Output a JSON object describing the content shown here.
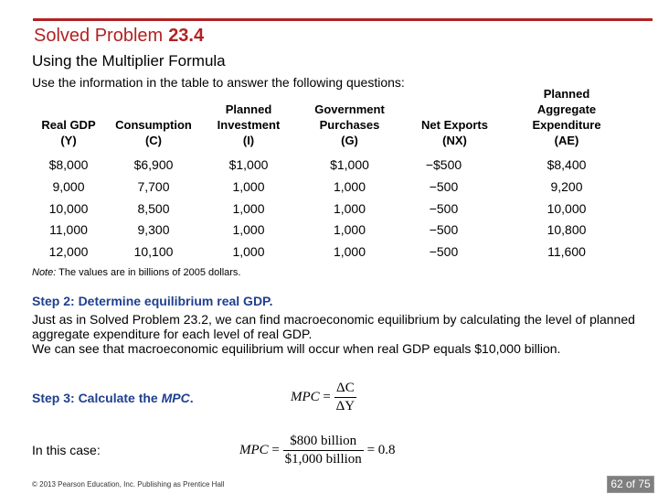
{
  "header": {
    "title": "Solved Problem",
    "title_number": "23.4",
    "subtitle": "Using the Multiplier Formula",
    "intro": "Use the information in the table to answer the following questions:"
  },
  "table": {
    "headers": [
      {
        "line1": "Real GDP",
        "line2": "",
        "line3": "",
        "var": "(Y)"
      },
      {
        "line1": "Consumption",
        "line2": "",
        "line3": "",
        "var": "(C)"
      },
      {
        "line1": "Planned",
        "line2": "Investment",
        "line3": "",
        "var": "(I)"
      },
      {
        "line1": "Government",
        "line2": "Purchases",
        "line3": "",
        "var": "(G)"
      },
      {
        "line1": "Net Exports",
        "line2": "",
        "line3": "",
        "var": "(NX)"
      },
      {
        "line1": "Planned",
        "line2": "Aggregate",
        "line3": "Expenditure",
        "var": "(AE)"
      }
    ],
    "rows": [
      [
        "$8,000",
        "$6,900",
        "$1,000",
        "$1,000",
        "−$500",
        "$8,400"
      ],
      [
        "9,000",
        "7,700",
        "1,000",
        "1,000",
        "−500",
        "9,200"
      ],
      [
        "10,000",
        "8,500",
        "1,000",
        "1,000",
        "−500",
        "10,000"
      ],
      [
        "11,000",
        "9,300",
        "1,000",
        "1,000",
        "−500",
        "10,800"
      ],
      [
        "12,000",
        "10,100",
        "1,000",
        "1,000",
        "−500",
        "11,600"
      ]
    ],
    "note_label": "Note:",
    "note_text": " The values are in billions of 2005 dollars."
  },
  "step2": {
    "heading": "Step 2: Determine equilibrium real GDP.",
    "para1": "Just as in Solved Problem 23.2, we can find macroeconomic equilibrium by calculating the level of planned aggregate expenditure for each level of real GDP.",
    "para2": "We can see that macroeconomic equilibrium will occur when real GDP equals $10,000 billion."
  },
  "step3": {
    "heading_prefix": "Step 3: Calculate the ",
    "heading_em": "MPC",
    "heading_suffix": "."
  },
  "formula1": {
    "lhs": "MPC",
    "num": "ΔC",
    "den": "ΔY"
  },
  "in_case": "In this case:",
  "formula2": {
    "lhs": "MPC",
    "num": "$800 billion",
    "den": "$1,000 billion",
    "result": "= 0.8"
  },
  "footer": {
    "copyright": "© 2013 Pearson Education, Inc. Publishing as Prentice Hall",
    "page": "62 of 75"
  },
  "colors": {
    "accent": "#b22222",
    "step": "#1f3f8f",
    "pager_bg": "#7f7f7f"
  }
}
